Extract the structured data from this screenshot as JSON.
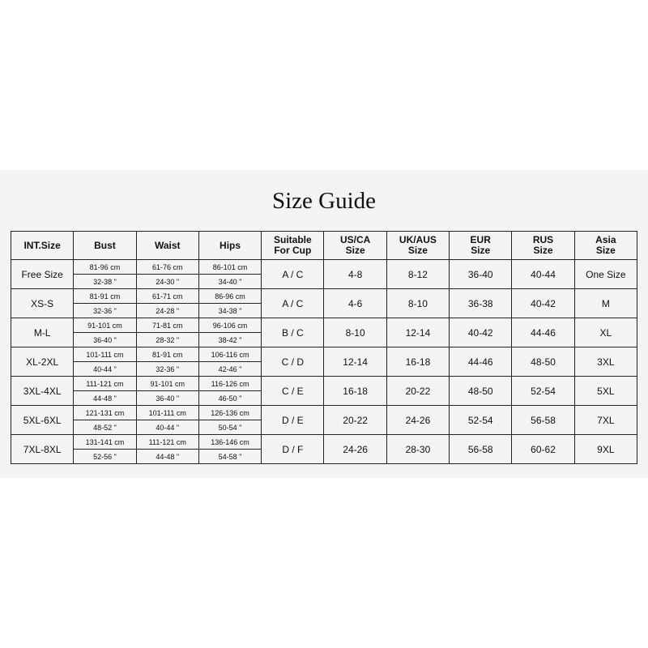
{
  "title": "Size Guide",
  "headers": [
    "INT.Size",
    "Bust",
    "Waist",
    "Hips",
    "Suitable\nFor Cup",
    "US/CA\nSize",
    "UK/AUS\nSize",
    "EUR\nSize",
    "RUS\nSize",
    "Asia\nSize"
  ],
  "rows": [
    {
      "size": "Free Size",
      "bust_cm": "81-96 cm",
      "bust_in": "32-38 \"",
      "waist_cm": "61-76 cm",
      "waist_in": "24-30 \"",
      "hips_cm": "86-101 cm",
      "hips_in": "34-40 \"",
      "cup": "A / C",
      "us": "4-8",
      "uk": "8-12",
      "eur": "36-40",
      "rus": "40-44",
      "asia": "One Size"
    },
    {
      "size": "XS-S",
      "bust_cm": "81-91 cm",
      "bust_in": "32-36 \"",
      "waist_cm": "61-71 cm",
      "waist_in": "24-28 \"",
      "hips_cm": "86-96 cm",
      "hips_in": "34-38 \"",
      "cup": "A / C",
      "us": "4-6",
      "uk": "8-10",
      "eur": "36-38",
      "rus": "40-42",
      "asia": "M"
    },
    {
      "size": "M-L",
      "bust_cm": "91-101 cm",
      "bust_in": "36-40 \"",
      "waist_cm": "71-81 cm",
      "waist_in": "28-32 \"",
      "hips_cm": "96-106 cm",
      "hips_in": "38-42 \"",
      "cup": "B / C",
      "us": "8-10",
      "uk": "12-14",
      "eur": "40-42",
      "rus": "44-46",
      "asia": "XL"
    },
    {
      "size": "XL-2XL",
      "bust_cm": "101-111 cm",
      "bust_in": "40-44 \"",
      "waist_cm": "81-91 cm",
      "waist_in": "32-36 \"",
      "hips_cm": "106-116 cm",
      "hips_in": "42-46 \"",
      "cup": "C / D",
      "us": "12-14",
      "uk": "16-18",
      "eur": "44-46",
      "rus": "48-50",
      "asia": "3XL"
    },
    {
      "size": "3XL-4XL",
      "bust_cm": "111-121 cm",
      "bust_in": "44-48 \"",
      "waist_cm": "91-101 cm",
      "waist_in": "36-40 \"",
      "hips_cm": "116-126 cm",
      "hips_in": "46-50 \"",
      "cup": "C / E",
      "us": "16-18",
      "uk": "20-22",
      "eur": "48-50",
      "rus": "52-54",
      "asia": "5XL"
    },
    {
      "size": "5XL-6XL",
      "bust_cm": "121-131 cm",
      "bust_in": "48-52 \"",
      "waist_cm": "101-111 cm",
      "waist_in": "40-44 \"",
      "hips_cm": "126-136 cm",
      "hips_in": "50-54 \"",
      "cup": "D / E",
      "us": "20-22",
      "uk": "24-26",
      "eur": "52-54",
      "rus": "56-58",
      "asia": "7XL"
    },
    {
      "size": "7XL-8XL",
      "bust_cm": "131-141 cm",
      "bust_in": "52-56 \"",
      "waist_cm": "111-121 cm",
      "waist_in": "44-48 \"",
      "hips_cm": "136-146 cm",
      "hips_in": "54-58 \"",
      "cup": "D / F",
      "us": "24-26",
      "uk": "28-30",
      "eur": "56-58",
      "rus": "60-62",
      "asia": "9XL"
    }
  ]
}
